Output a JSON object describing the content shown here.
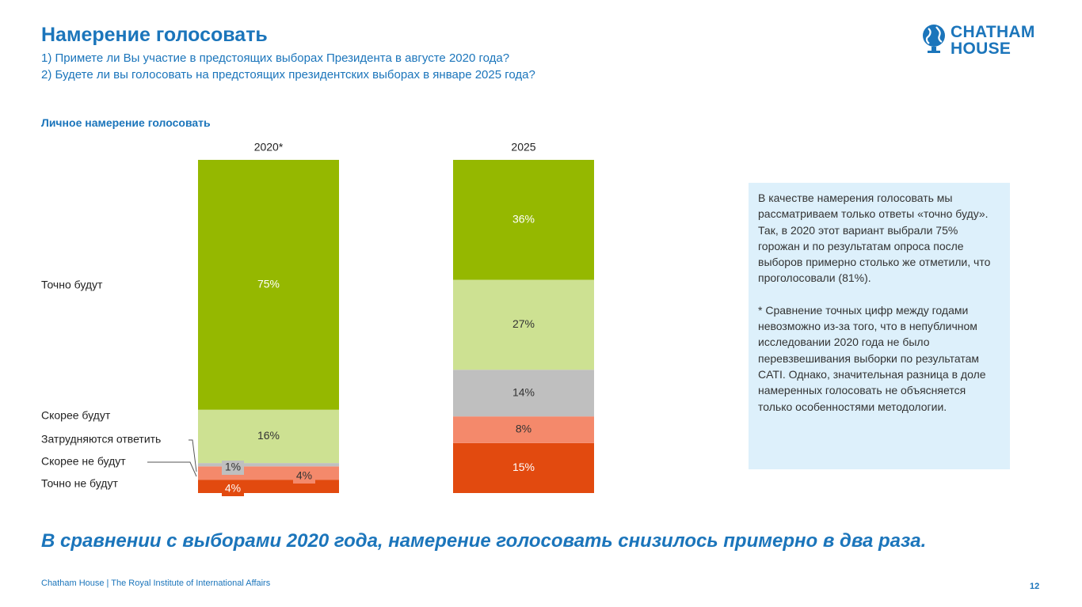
{
  "header": {
    "title": "Намерение голосовать",
    "question_1": "1) Примете ли Вы участие в предстоящих выборах Президента в августе 2020 года?",
    "question_2": "2) Будете ли вы голосовать на предстоящих президентских выборах в январе 2025 года?"
  },
  "logo": {
    "line_1": "CHATHAM",
    "line_2": "HOUSE",
    "color": "#1b75bb"
  },
  "chart_data": {
    "type": "bar",
    "stacked": true,
    "orientation": "vertical",
    "title": "Личное намерение голосовать",
    "categories": [
      "2020*",
      "2025"
    ],
    "series": [
      {
        "name": "Точно не будут",
        "values": [
          4,
          15
        ],
        "labels": [
          "4%",
          "15%"
        ],
        "color": "#e24a0f"
      },
      {
        "name": "Скорее не будут",
        "values": [
          4,
          8
        ],
        "labels": [
          "4%",
          "8%"
        ],
        "color": "#f4896b"
      },
      {
        "name": "Затрудняются ответить",
        "values": [
          1,
          14
        ],
        "labels": [
          "1%",
          "14%"
        ],
        "color": "#bfbfbf"
      },
      {
        "name": "Скорее будут",
        "values": [
          16,
          27
        ],
        "labels": [
          "16%",
          "27%"
        ],
        "color": "#cde192"
      },
      {
        "name": "Точно будут",
        "values": [
          75,
          36
        ],
        "labels": [
          "75%",
          "36%"
        ],
        "color": "#95b800"
      }
    ],
    "ylim": [
      0,
      100
    ],
    "xlabel": "",
    "ylabel": "",
    "legend": "left"
  },
  "note": {
    "paragraph_1": "В качестве намерения голосовать мы рассматриваем только ответы «точно буду». Так, в 2020 этот вариант выбрали 75% горожан и по результатам опроса после выборов примерно столько же отметили, что проголосовали (81%).",
    "paragraph_2": "* Сравнение точных цифр между годами невозможно из-за того, что в непубличном исследовании 2020 года не было перевзвешивания выборки по результатам CATI. Однако, значительная разница в доле намеренных голосовать не объясняется только особенностями методологии."
  },
  "conclusion": "В сравнении с выборами 2020 года, намерение голосовать снизилось примерно в два раза.",
  "footer": {
    "text": "Chatham House  |  The Royal Institute of International Affairs",
    "page_number": "12"
  }
}
